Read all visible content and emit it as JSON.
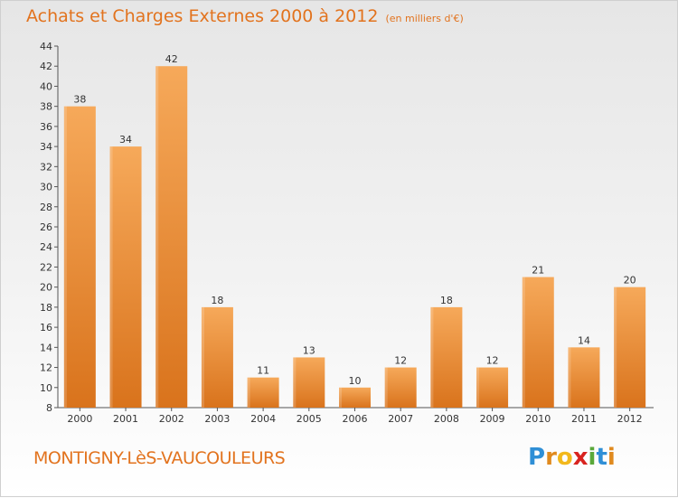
{
  "header": {
    "title": "Achats et Charges Externes 2000 à 2012",
    "unit": "(en milliers d'€)"
  },
  "footer": {
    "city": "MONTIGNY-LèS-VAUCOULEURS",
    "logo_letters": [
      "P",
      "r",
      "o",
      "x",
      "i",
      "t",
      "i"
    ],
    "logo_colors": [
      "#2f8fd6",
      "#e08a1e",
      "#f2b81c",
      "#d8231f",
      "#5aa83a",
      "#2f8fd6",
      "#e08a1e"
    ]
  },
  "colors": {
    "accent": "#e2731e",
    "bar_top": "#f6a95a",
    "bar_bottom": "#d9731c"
  },
  "chart_data": {
    "type": "bar",
    "title": "Achats et Charges Externes 2000 à 2012",
    "subtitle": "(en milliers d'€)",
    "xlabel": "",
    "ylabel": "",
    "categories": [
      "2000",
      "2001",
      "2002",
      "2003",
      "2004",
      "2005",
      "2006",
      "2007",
      "2008",
      "2009",
      "2010",
      "2011",
      "2012"
    ],
    "values": [
      38,
      34,
      42,
      18,
      11,
      13,
      10,
      12,
      18,
      12,
      21,
      14,
      20
    ],
    "ylim": [
      8,
      44
    ],
    "yticks": [
      8,
      10,
      12,
      14,
      16,
      18,
      20,
      22,
      24,
      26,
      28,
      30,
      32,
      34,
      36,
      38,
      40,
      42,
      44
    ],
    "grid": false,
    "legend": "none"
  }
}
